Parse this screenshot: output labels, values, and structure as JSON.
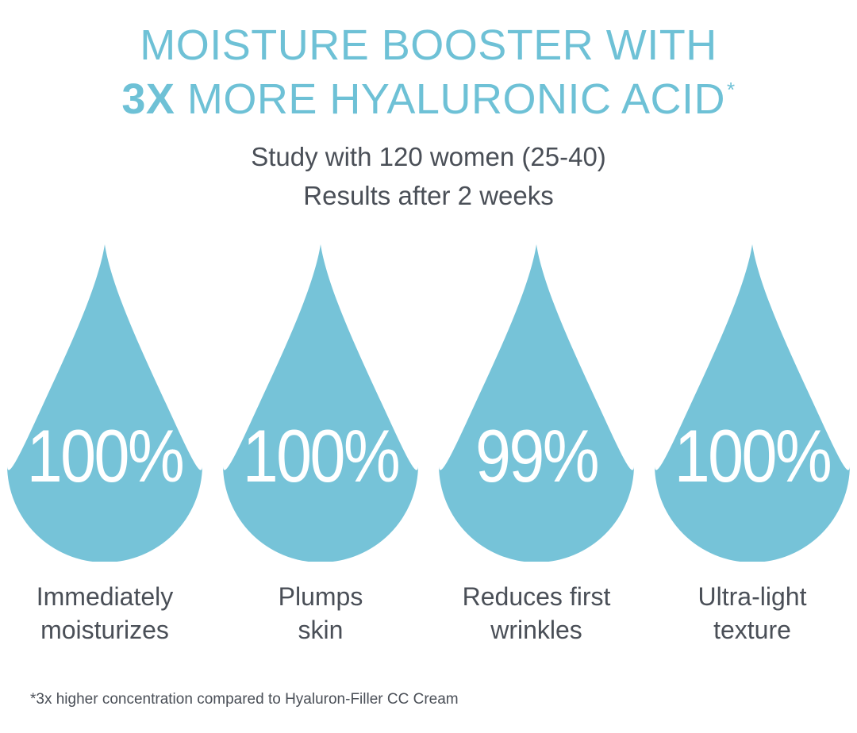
{
  "title": {
    "line1": "MOISTURE BOOSTER WITH",
    "line2_emphasis": "3X",
    "line2_rest": " MORE HYALURONIC ACID",
    "line2_mark": "*"
  },
  "subtitle": {
    "line1": "Study with 120 women (25-40)",
    "line2": "Results after 2 weeks"
  },
  "stats": [
    {
      "value": "100%",
      "label_line1": "Immediately",
      "label_line2": "moisturizes"
    },
    {
      "value": "100%",
      "label_line1": "Plumps",
      "label_line2": "skin"
    },
    {
      "value": "99%",
      "label_line1": "Reduces first",
      "label_line2": "wrinkles"
    },
    {
      "value": "100%",
      "label_line1": "Ultra-light",
      "label_line2": "texture"
    }
  ],
  "footnote": "*3x higher concentration compared to Hyaluron-Filler CC Cream",
  "colors": {
    "accent": "#6ec1d6",
    "drop": "#76c3d8",
    "text": "#4a4f57"
  },
  "icons": {
    "drop": "water-drop-icon"
  }
}
